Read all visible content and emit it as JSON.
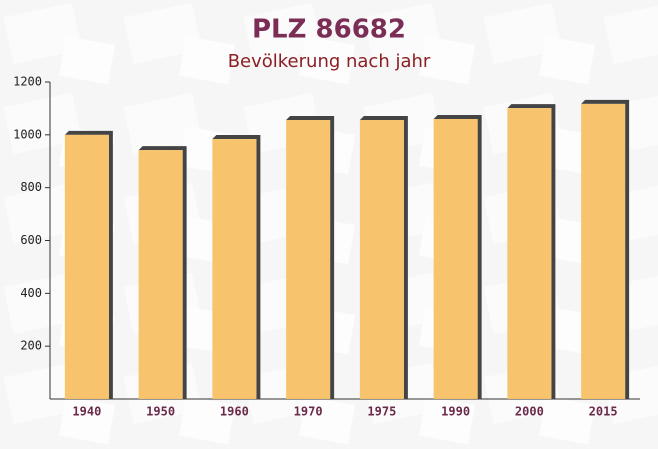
{
  "chart_data": {
    "type": "bar",
    "title": "PLZ 86682",
    "subtitle": "Bevölkerung nach jahr",
    "categories": [
      "1940",
      "1950",
      "1960",
      "1970",
      "1975",
      "1990",
      "2000",
      "2015"
    ],
    "values": [
      1000,
      942,
      984,
      1056,
      1056,
      1060,
      1101,
      1117
    ],
    "color": "#f7c165",
    "ylim": [
      0,
      1200
    ],
    "yticks": [
      200,
      400,
      600,
      800,
      1000,
      1200
    ]
  }
}
